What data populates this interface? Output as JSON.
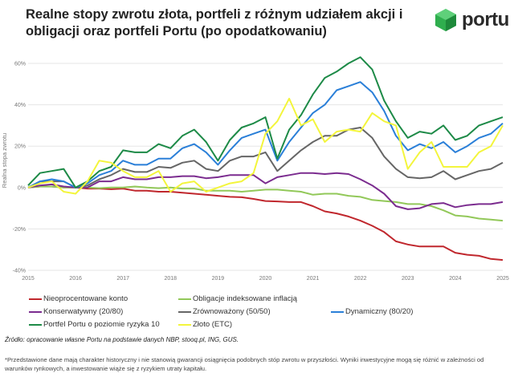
{
  "title": "Realne stopy zwrotu złota, portfeli z różnym udziałem akcji i obligacji oraz portfeli Portu (po opodatkowaniu)",
  "logo": {
    "text": "portu",
    "icon": "green-hexagon-cube-icon",
    "color": "#2fae4e"
  },
  "chart_data": {
    "type": "line",
    "title": "",
    "xlabel": "",
    "ylabel": "Realna stopa zwrotu",
    "xlim": [
      2015,
      2025
    ],
    "ylim": [
      -40,
      60
    ],
    "grid": true,
    "legend_placement": "bottom",
    "x_ticks": [
      "2015",
      "2016",
      "2017",
      "2018",
      "2019",
      "2020",
      "2021",
      "2022",
      "2023",
      "2024",
      "2025"
    ],
    "y_ticks": [
      {
        "v": 60,
        "label": "60%"
      },
      {
        "v": 40,
        "label": "40%"
      },
      {
        "v": 20,
        "label": "20%"
      },
      {
        "v": 0,
        "label": "0%"
      },
      {
        "v": -20,
        "label": "-20%"
      },
      {
        "v": -40,
        "label": "-40%"
      }
    ],
    "x": [
      2015,
      2015.25,
      2015.5,
      2015.75,
      2016,
      2016.25,
      2016.5,
      2016.75,
      2017,
      2017.25,
      2017.5,
      2017.75,
      2018,
      2018.25,
      2018.5,
      2018.75,
      2019,
      2019.25,
      2019.5,
      2019.75,
      2020,
      2020.25,
      2020.5,
      2020.75,
      2021,
      2021.25,
      2021.5,
      2021.75,
      2022,
      2022.25,
      2022.5,
      2022.75,
      2023,
      2023.25,
      2023.5,
      2023.75,
      2024,
      2024.25,
      2024.5,
      2024.75,
      2025
    ],
    "series": [
      {
        "name": "Nieoprocentowane konto",
        "color": "#c0272d",
        "values": [
          0,
          0.5,
          0.5,
          0,
          0,
          -0.5,
          -0.5,
          -0.8,
          -0.5,
          -1.5,
          -1.5,
          -2,
          -2,
          -2.5,
          -3,
          -3.5,
          -4,
          -4.5,
          -4.7,
          -5.5,
          -6.5,
          -6.7,
          -7,
          -7,
          -9,
          -11.5,
          -12.5,
          -14,
          -16,
          -18.5,
          -21.5,
          -26,
          -27.5,
          -28.5,
          -28.5,
          -28.5,
          -31.5,
          -32.5,
          -33,
          -34.5,
          -35
        ]
      },
      {
        "name": "Obligacje indeksowane inflacją",
        "color": "#92c859",
        "values": [
          0,
          0.5,
          0.5,
          0,
          0,
          0,
          -0.3,
          0,
          0,
          0.5,
          0,
          -0.3,
          0,
          -0.5,
          -0.5,
          -1.5,
          -1.5,
          -1.5,
          -2,
          -1.5,
          -1,
          -1,
          -1.5,
          -2,
          -3.5,
          -3,
          -3,
          -4,
          -4.5,
          -6,
          -6.5,
          -7,
          -8,
          -8,
          -9,
          -11,
          -13.5,
          -14,
          -15,
          -15.5,
          -16
        ]
      },
      {
        "name": "Konserwatywny (20/80)",
        "color": "#7b2c8f",
        "values": [
          0,
          1,
          1.5,
          0.5,
          0,
          0,
          3,
          3,
          5,
          4,
          4,
          5,
          5,
          5.5,
          5.5,
          4.5,
          5,
          6,
          6,
          6,
          2,
          5,
          6,
          7,
          7,
          6.5,
          7,
          6.5,
          4,
          1,
          -3,
          -9,
          -10.5,
          -10,
          -8,
          -7.5,
          -9.5,
          -8.5,
          -8,
          -8,
          -7
        ]
      },
      {
        "name": "Zrównoważony (50/50)",
        "color": "#666666",
        "values": [
          0,
          3,
          3,
          3,
          0,
          1,
          4,
          6,
          9,
          7.5,
          7.5,
          10,
          9.5,
          12,
          13,
          9,
          8,
          13,
          15,
          15,
          17,
          8,
          13,
          18,
          22,
          25,
          25,
          28,
          29,
          24,
          15,
          9,
          5,
          4.5,
          5,
          8,
          4,
          6,
          8,
          9,
          12
        ]
      },
      {
        "name": "Dynamiczny (80/20)",
        "color": "#2a7fd8",
        "values": [
          0,
          3,
          4,
          3,
          0,
          2,
          6,
          8,
          13,
          11,
          11,
          14,
          14,
          19,
          21,
          17,
          11,
          18,
          24,
          26,
          28,
          13,
          22,
          29,
          36,
          40,
          47,
          49,
          51,
          46,
          37,
          25,
          18,
          21,
          19,
          22,
          17,
          20,
          24,
          26,
          31
        ]
      },
      {
        "name": "Portfel Portu o poziomie ryzyka 10",
        "color": "#1d8a47",
        "values": [
          1,
          7,
          8,
          9,
          0,
          3,
          8,
          10,
          18,
          17,
          17,
          21,
          19,
          25,
          28,
          22,
          13,
          23,
          29,
          31,
          34,
          14,
          28,
          35,
          45,
          53,
          56,
          60,
          63,
          57,
          42,
          32,
          24,
          27,
          26,
          30,
          23,
          25,
          30,
          32,
          34
        ]
      },
      {
        "name": "Złoto (ETC)",
        "color": "#f3f53c",
        "values": [
          0,
          2,
          3,
          -2,
          -3,
          3,
          13,
          12,
          8,
          5,
          5,
          8,
          -2,
          2,
          3,
          -2,
          0,
          2,
          3,
          7,
          26,
          32,
          43,
          30,
          33,
          22,
          27,
          28,
          27,
          36,
          32,
          30,
          9,
          17,
          22,
          10,
          10,
          10,
          17,
          20,
          30
        ]
      }
    ]
  },
  "source": "Źródło: opracowanie własne Portu na podstawie danych NBP, stooq.pl, ING, GUS.",
  "disclaimer": "*Przedstawione dane mają charakter historyczny i nie stanowią gwarancji osiągnięcia podobnych stóp zwrotu w przyszłości. Wyniki inwestycyjne mogą się różnić w zależności od warunków rynkowych, a inwestowanie wiąże się z ryzykiem utraty kapitału."
}
